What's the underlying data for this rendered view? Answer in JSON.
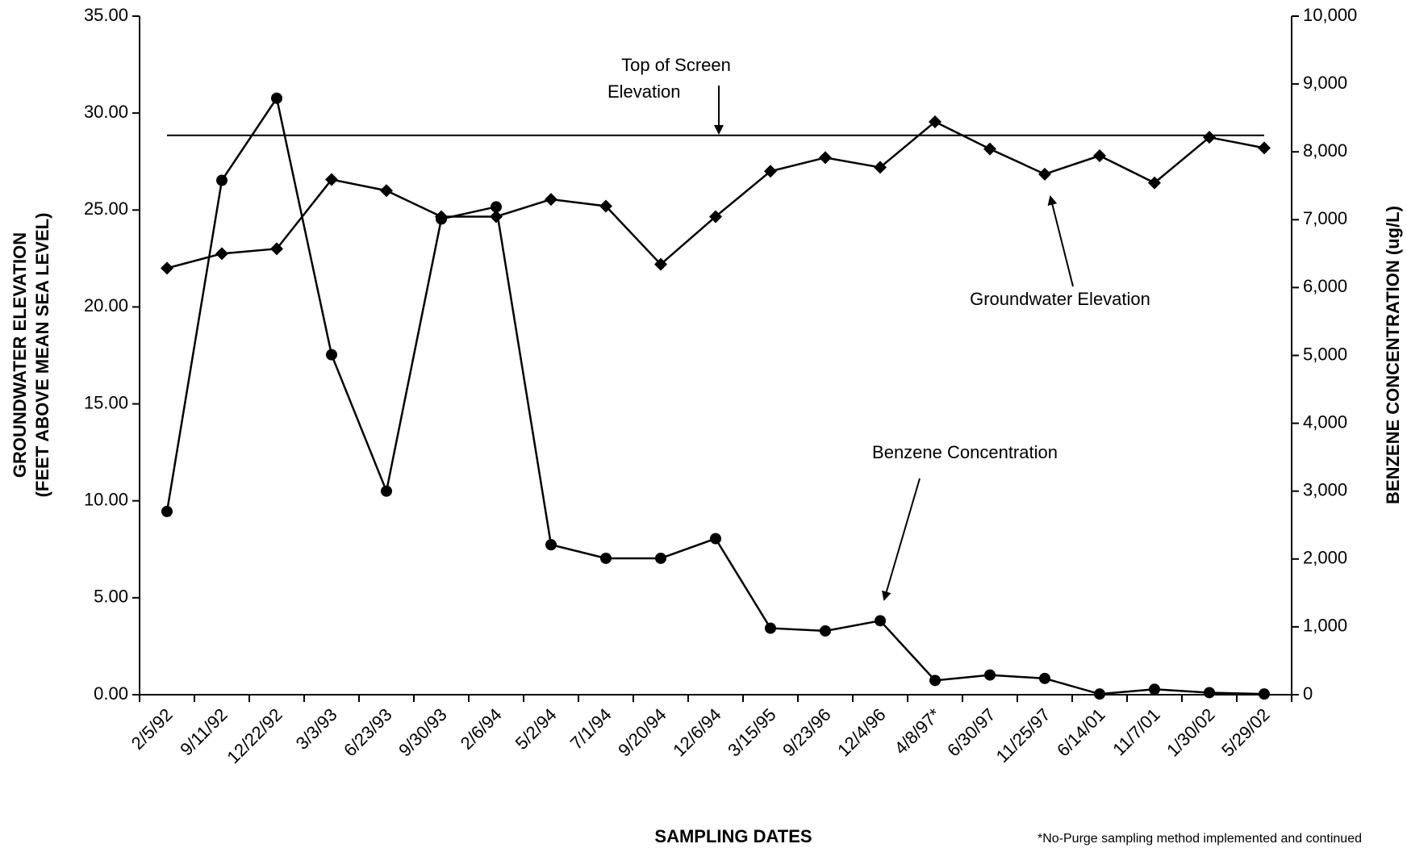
{
  "chart_data": {
    "type": "line",
    "categories": [
      "2/5/92",
      "9/11/92",
      "12/22/92",
      "3/3/93",
      "6/23/93",
      "9/30/93",
      "2/6/94",
      "5/2/94",
      "7/1/94",
      "9/20/94",
      "12/6/94",
      "3/15/95",
      "9/23/96",
      "12/4/96",
      "4/8/97*",
      "6/30/97",
      "11/25/97",
      "6/14/01",
      "11/7/01",
      "1/30/02",
      "5/29/02"
    ],
    "series": [
      {
        "name": "Groundwater Elevation",
        "color": "#000000",
        "marker": "diamond",
        "values": [
          22.0,
          22.75,
          23.0,
          26.57,
          26.0,
          24.66,
          24.66,
          25.55,
          25.2,
          22.2,
          24.66,
          27.0,
          27.7,
          27.2,
          29.55,
          28.15,
          26.85,
          27.8,
          26.4,
          28.75,
          28.2
        ]
      },
      {
        "name": "Benzene Concentration",
        "color": "#000000",
        "marker": "circle",
        "axis": "y2",
        "values": [
          2700,
          7580,
          8790,
          5010,
          3000,
          7010,
          7190,
          2210,
          2010,
          2010,
          2300,
          980,
          940,
          1090,
          210,
          290,
          240,
          10,
          80,
          30,
          10
        ]
      }
    ],
    "screen_elevation": 28.85,
    "ylabel": [
      "GROUNDWATER ELEVATION",
      "(FEET ABOVE MEAN SEA LEVEL)"
    ],
    "y2label": "BENZENE CONCENTRATION (ug/L)",
    "xlabel": "SAMPLING DATES",
    "annotations": [
      [
        "Top of Screen",
        "Elevation"
      ],
      "Groundwater Elevation",
      "Benzene Concentration"
    ],
    "footnote": "*No-Purge sampling method implemented and continued",
    "ylim": [
      0,
      35
    ],
    "yticks": [
      {
        "value": 0,
        "label": "0.00"
      },
      {
        "value": 5,
        "label": "5.00"
      },
      {
        "value": 10,
        "label": "10.00"
      },
      {
        "value": 15,
        "label": "15.00"
      },
      {
        "value": 20,
        "label": "20.00"
      },
      {
        "value": 25,
        "label": "25.00"
      },
      {
        "value": 30,
        "label": "30.00"
      },
      {
        "value": 35,
        "label": "35.00"
      }
    ],
    "y2lim": [
      0,
      10000
    ],
    "y2ticks": [
      0,
      {
        "value": 1000,
        "label": "1,000"
      },
      {
        "value": 2000,
        "label": "2,000"
      },
      {
        "value": 3000,
        "label": "3,000"
      },
      {
        "value": 4000,
        "label": "4,000"
      },
      {
        "value": 5000,
        "label": "5,000"
      },
      {
        "value": 6000,
        "label": "6,000"
      },
      {
        "value": 7000,
        "label": "7,000"
      },
      {
        "value": 8000,
        "label": "8,000"
      },
      {
        "value": 9000,
        "label": "9,000"
      },
      {
        "value": 10000,
        "label": "10,000"
      }
    ]
  }
}
